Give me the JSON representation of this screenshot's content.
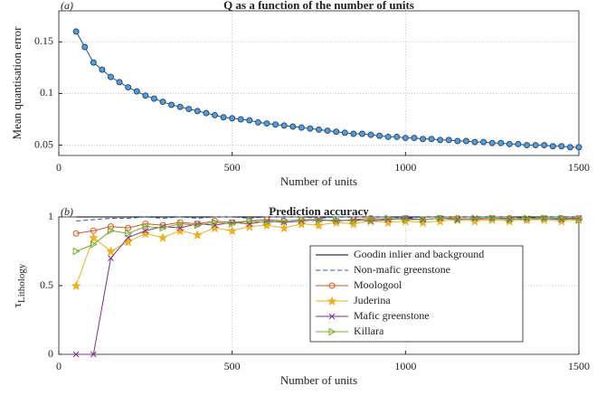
{
  "chart_data": [
    {
      "type": "line",
      "panel_label": "(a)",
      "title": "Q as a function of the number of units",
      "xlabel": "Number of units",
      "ylabel": "Mean quantisation error",
      "xlim": [
        0,
        1500
      ],
      "xticks": [
        0,
        500,
        1000,
        1500
      ],
      "ylim": [
        0.04,
        0.18
      ],
      "yticks": [
        0.05,
        0.1,
        0.15
      ],
      "grid": true,
      "x": [
        50,
        75,
        100,
        125,
        150,
        175,
        200,
        225,
        250,
        275,
        300,
        325,
        350,
        375,
        400,
        425,
        450,
        475,
        500,
        525,
        550,
        575,
        600,
        625,
        650,
        675,
        700,
        725,
        750,
        775,
        800,
        825,
        850,
        875,
        900,
        925,
        950,
        975,
        1000,
        1025,
        1050,
        1075,
        1100,
        1125,
        1150,
        1175,
        1200,
        1225,
        1250,
        1275,
        1300,
        1325,
        1350,
        1375,
        1400,
        1425,
        1450,
        1475,
        1500
      ],
      "series": [
        {
          "color": "#1f4e79",
          "fill": "#5b9bd5",
          "marker": "o",
          "values": [
            0.16,
            0.145,
            0.13,
            0.123,
            0.116,
            0.111,
            0.106,
            0.102,
            0.098,
            0.095,
            0.092,
            0.089,
            0.087,
            0.085,
            0.083,
            0.081,
            0.079,
            0.077,
            0.076,
            0.075,
            0.074,
            0.072,
            0.071,
            0.07,
            0.069,
            0.068,
            0.067,
            0.066,
            0.065,
            0.064,
            0.063,
            0.062,
            0.061,
            0.061,
            0.06,
            0.059,
            0.058,
            0.058,
            0.057,
            0.057,
            0.056,
            0.056,
            0.055,
            0.055,
            0.054,
            0.054,
            0.053,
            0.053,
            0.052,
            0.052,
            0.051,
            0.051,
            0.05,
            0.05,
            0.05,
            0.049,
            0.049,
            0.048,
            0.048
          ]
        }
      ]
    },
    {
      "type": "line",
      "panel_label": "(b)",
      "title": "Prediction accuracy",
      "xlabel": "Number of units",
      "ylabel": {
        "symbol": "τ",
        "subscript": "Lithology"
      },
      "xlim": [
        0,
        1500
      ],
      "xticks": [
        0,
        500,
        1000,
        1500
      ],
      "ylim": [
        0,
        1
      ],
      "yticks": [
        0,
        0.5,
        1
      ],
      "grid": true,
      "legend": true,
      "x": [
        50,
        100,
        150,
        200,
        250,
        300,
        350,
        400,
        450,
        500,
        550,
        600,
        650,
        700,
        750,
        800,
        850,
        900,
        950,
        1000,
        1050,
        1100,
        1150,
        1200,
        1250,
        1300,
        1350,
        1400,
        1450,
        1500
      ],
      "series": [
        {
          "name": "Goodin inlier and background",
          "color": "#000000",
          "marker": "none",
          "dash": false,
          "values": [
            1,
            1,
            1,
            1,
            1,
            1,
            1,
            1,
            1,
            1,
            1,
            1,
            1,
            1,
            1,
            1,
            1,
            1,
            1,
            1,
            1,
            1,
            1,
            1,
            1,
            1,
            1,
            1,
            1,
            1
          ]
        },
        {
          "name": "Non-mafic greenstone",
          "color": "#1f5fbf",
          "marker": "none",
          "dash": true,
          "values": [
            0.97,
            0.98,
            0.99,
            0.99,
            1,
            0.99,
            1,
            0.99,
            1,
            1,
            0.99,
            1,
            1,
            1,
            0.99,
            1,
            1,
            1,
            1,
            0.99,
            1,
            1,
            1,
            1,
            1,
            1,
            0.99,
            1,
            1,
            1
          ]
        },
        {
          "name": "Moologool",
          "color": "#d9531e",
          "marker": "o",
          "dash": false,
          "values": [
            0.88,
            0.9,
            0.93,
            0.92,
            0.95,
            0.94,
            0.96,
            0.95,
            0.97,
            0.96,
            0.97,
            0.98,
            0.97,
            0.98,
            0.98,
            0.97,
            0.98,
            0.99,
            0.98,
            0.99,
            0.98,
            0.99,
            0.99,
            0.98,
            0.99,
            0.99,
            0.98,
            0.99,
            0.99,
            0.99
          ]
        },
        {
          "name": "Juderina",
          "color": "#edb120",
          "marker": "*",
          "dash": false,
          "values": [
            0.5,
            0.85,
            0.75,
            0.82,
            0.88,
            0.85,
            0.9,
            0.87,
            0.92,
            0.9,
            0.93,
            0.94,
            0.92,
            0.95,
            0.94,
            0.96,
            0.95,
            0.97,
            0.96,
            0.97,
            0.96,
            0.97,
            0.98,
            0.97,
            0.98,
            0.97,
            0.98,
            0.98,
            0.97,
            0.98
          ]
        },
        {
          "name": "Mafic greenstone",
          "color": "#7e2f8e",
          "marker": "x",
          "dash": false,
          "values": [
            0,
            0,
            0.7,
            0.85,
            0.9,
            0.93,
            0.92,
            0.95,
            0.94,
            0.96,
            0.95,
            0.97,
            0.96,
            0.97,
            0.98,
            0.97,
            0.98,
            0.97,
            0.98,
            0.99,
            0.98,
            0.99,
            0.98,
            0.99,
            0.99,
            0.98,
            0.99,
            0.99,
            0.98,
            0.99
          ]
        },
        {
          "name": "Killara",
          "color": "#77ac30",
          "marker": ">",
          "dash": false,
          "values": [
            0.75,
            0.8,
            0.9,
            0.88,
            0.93,
            0.92,
            0.95,
            0.94,
            0.96,
            0.95,
            0.97,
            0.96,
            0.97,
            0.98,
            0.97,
            0.98,
            0.97,
            0.98,
            0.99,
            0.98,
            0.98,
            0.99,
            0.98,
            0.99,
            0.99,
            0.98,
            0.99,
            0.99,
            0.99,
            0.98
          ]
        }
      ]
    }
  ]
}
